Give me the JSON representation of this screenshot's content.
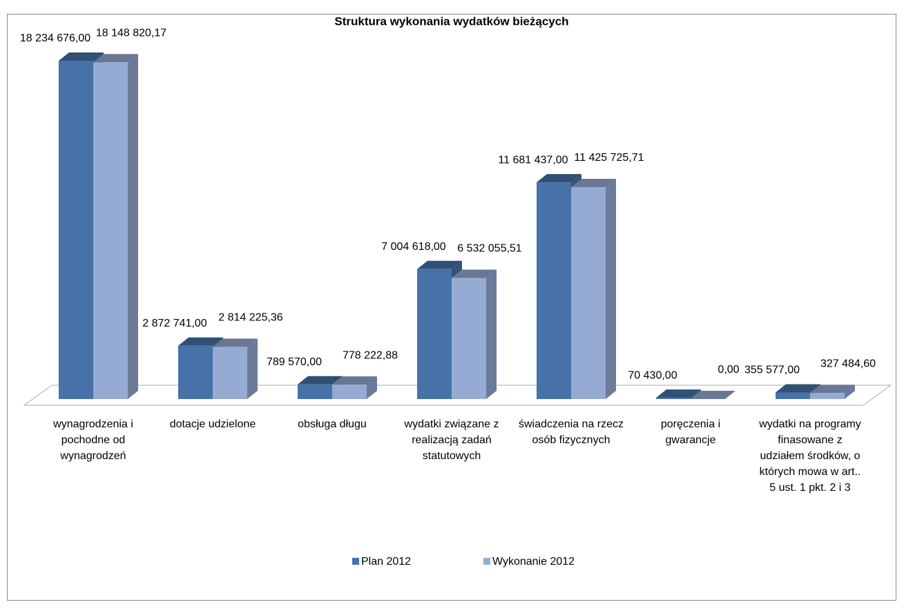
{
  "chart_data": {
    "type": "bar3d",
    "title": "Struktura wykonania wydatków bieżących",
    "categories": [
      "wynagrodzenia  i pochodne od wynagrodzeń",
      "dotacje udzielone",
      "obsługa długu",
      "wydatki związane z realizacją zadań statutowych",
      "świadczenia na rzecz osób fizycznych",
      "poręczenia i gwarancje",
      "wydatki na programy finasowane z udziałem środków, o których mowa w art.. 5 ust. 1 pkt. 2 i 3"
    ],
    "series": [
      {
        "name": "Plan 2012",
        "color": "#4672a8",
        "values": [
          18234676.0,
          2872741.0,
          789570.0,
          7004618.0,
          11681437.0,
          70430.0,
          355577.0
        ],
        "value_labels": [
          "18 234 676,00",
          "2 872 741,00",
          "789 570,00",
          "7 004 618,00",
          "11 681 437,00",
          "70 430,00",
          "355 577,00"
        ]
      },
      {
        "name": "Wykonanie 2012",
        "color": "#95abd4",
        "values": [
          18148820.17,
          2814225.36,
          778222.88,
          6532055.51,
          11425725.71,
          0.0,
          327484.6
        ],
        "value_labels": [
          "18 148 820,17",
          "2 814 225,36",
          "778 222,88",
          "6 532 055,51",
          "11 425 725,71",
          "0,00",
          "327 484,60"
        ]
      }
    ],
    "legend": "bottom"
  }
}
